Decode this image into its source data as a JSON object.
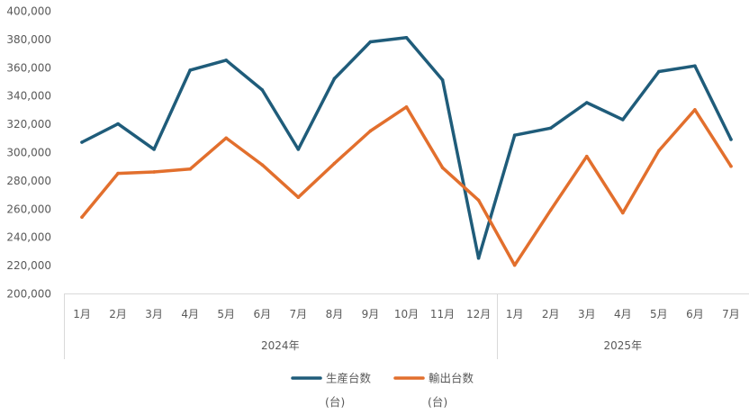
{
  "chart_data": {
    "type": "line",
    "title": "",
    "xlabel": "",
    "ylabel": "",
    "ylim": [
      200000,
      400000
    ],
    "ytick_step": 20000,
    "grid": false,
    "legend_position": "bottom",
    "categories": [
      "1月",
      "2月",
      "3月",
      "4月",
      "5月",
      "6月",
      "7月",
      "8月",
      "9月",
      "10月",
      "11月",
      "12月",
      "1月",
      "2月",
      "3月",
      "4月",
      "5月",
      "6月",
      "7月"
    ],
    "groups": [
      {
        "label": "2024年",
        "count": 12
      },
      {
        "label": "2025年",
        "count": 7
      }
    ],
    "series": [
      {
        "name": "生産台数",
        "unit": "(台)",
        "color": "#1F5C7A",
        "values": [
          307000,
          320000,
          302000,
          358000,
          365000,
          344000,
          302000,
          352000,
          378000,
          381000,
          351000,
          225000,
          312000,
          317000,
          335000,
          323000,
          357000,
          361000,
          309000
        ]
      },
      {
        "name": "輸出台数",
        "unit": "(台)",
        "color": "#E26F2D",
        "values": [
          254000,
          285000,
          286000,
          288000,
          310000,
          291000,
          268000,
          292000,
          315000,
          332000,
          289000,
          266000,
          220000,
          259000,
          297000,
          257000,
          301000,
          330000,
          290000
        ]
      }
    ]
  }
}
